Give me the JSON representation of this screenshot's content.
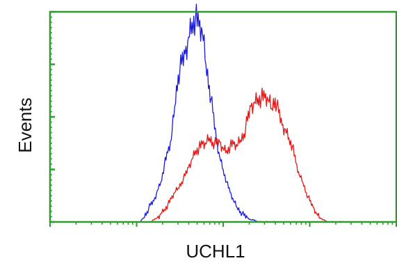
{
  "chart_data": {
    "type": "line",
    "title": "",
    "xlabel": "UCHL1",
    "ylabel": "Events",
    "xscale": "log",
    "xlim": [
      0,
      100
    ],
    "ylim": [
      0,
      100
    ],
    "grid": false,
    "legend": "none",
    "frame_color": "#2f9a2f",
    "series": [
      {
        "color": "#1a1adf",
        "x": [
          26,
          27,
          28,
          29,
          30,
          31,
          32,
          33,
          34,
          35,
          36,
          37,
          38,
          39,
          40,
          41,
          42,
          43,
          44,
          45,
          46,
          47,
          48,
          49,
          50,
          51,
          52,
          53,
          54,
          55,
          56,
          57,
          58,
          59,
          60,
          61,
          62,
          63,
          64,
          65
        ],
        "y": [
          0,
          2,
          5,
          8,
          10,
          15,
          19,
          27,
          33,
          39,
          55,
          70,
          75,
          80,
          88,
          95,
          97,
          93,
          90,
          75,
          65,
          52,
          40,
          31,
          25,
          19,
          14,
          10,
          7,
          5,
          3,
          2,
          1,
          1,
          0,
          0,
          0,
          0,
          0,
          0
        ]
      },
      {
        "color": "#e01818",
        "x": [
          29,
          30,
          31,
          32,
          33,
          34,
          35,
          36,
          37,
          38,
          39,
          40,
          41,
          42,
          43,
          44,
          45,
          46,
          47,
          48,
          49,
          50,
          51,
          52,
          53,
          54,
          55,
          56,
          57,
          58,
          59,
          60,
          61,
          62,
          63,
          64,
          65,
          66,
          67,
          68,
          69,
          70,
          71,
          72,
          73,
          74,
          75,
          76,
          77,
          78,
          79,
          80,
          81,
          82,
          83,
          84,
          85,
          86
        ],
        "y": [
          0,
          1,
          2,
          4,
          6,
          8,
          11,
          14,
          16,
          19,
          22,
          26,
          30,
          34,
          35,
          37,
          37,
          40,
          38,
          37,
          38,
          35,
          34,
          36,
          37,
          36,
          39,
          42,
          48,
          55,
          57,
          59,
          59,
          59,
          58,
          54,
          59,
          52,
          46,
          44,
          40,
          36,
          28,
          22,
          19,
          14,
          10,
          7,
          4,
          2,
          1,
          0,
          0,
          0,
          0,
          0,
          0,
          0
        ]
      }
    ]
  }
}
